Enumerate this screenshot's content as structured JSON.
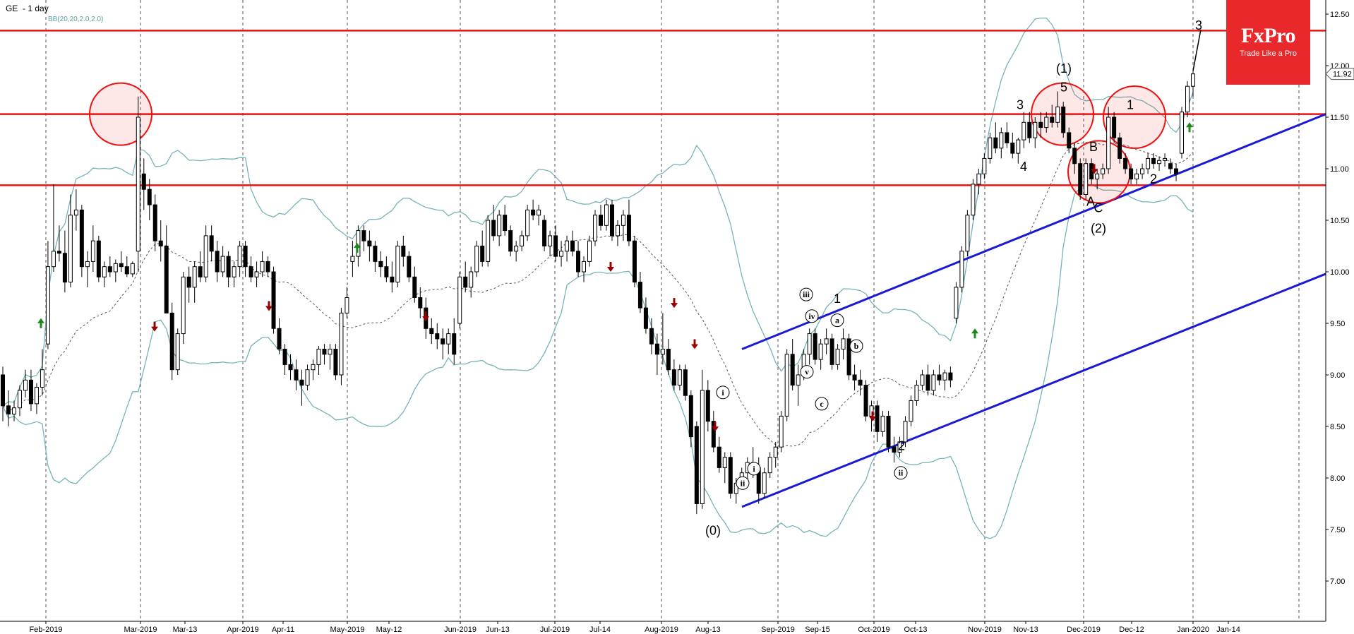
{
  "header": {
    "symbol": "GE",
    "timeframe": "- 1 day",
    "indicator": "BB(20,20,2.0,2.0)"
  },
  "logo": {
    "brand": "FxPro",
    "tagline": "Trade Like a Pro"
  },
  "colors": {
    "resistance": "#ee1111",
    "channel": "#1a1ad6",
    "bands": "#76b3b8",
    "ma": "#555555",
    "up_arrow": "#1a8a1a",
    "down_arrow": "#9a0000"
  },
  "chart_data": {
    "type": "candlestick",
    "price_axis": {
      "ticks": [
        7.0,
        7.5,
        8.0,
        8.5,
        9.0,
        9.5,
        10.0,
        10.5,
        11.0,
        11.5,
        12.0,
        12.5
      ],
      "ylim": [
        6.63,
        12.78
      ],
      "last_price_label": "11.92"
    },
    "time_axis": {
      "labels": [
        "Feb-2019",
        "Mar-2019",
        "Mar-13",
        "Apr-2019",
        "Apr-11",
        "May-2019",
        "May-12",
        "Jun-2019",
        "Jun-13",
        "Jul-2019",
        "Jul-14",
        "Aug-2019",
        "Aug-13",
        "Sep-2019",
        "Sep-15",
        "Oct-2019",
        "Oct-13",
        "Nov-2019",
        "Nov-13",
        "Dec-2019",
        "Dec-12",
        "Jan-2020",
        "Jan-14"
      ]
    },
    "horizontal_levels": [
      12.34,
      11.53,
      10.84
    ],
    "channel_upper": {
      "start": [
        "Aug-27-2019",
        9.25
      ],
      "end": [
        "Jan-2020+",
        11.53
      ]
    },
    "channel_lower": {
      "start": [
        "Aug-27-2019",
        7.72
      ],
      "end": [
        "Jan-2020+",
        9.98
      ]
    },
    "highlight_circles": [
      {
        "date": "Feb-22-2019",
        "price": 11.53
      },
      {
        "date": "Nov-22-2019",
        "price": 11.53
      },
      {
        "date": "Dec-06-2019",
        "price": 10.97
      },
      {
        "date": "Dec-13-2019",
        "price": 11.5
      }
    ],
    "wave_labels": [
      "(0)",
      "1",
      "2",
      "3",
      "4",
      "5",
      "(1)",
      "A",
      "B",
      "C",
      "(2)",
      "1",
      "2",
      "3"
    ],
    "minor_wave_labels": [
      "i",
      "ii",
      "iii",
      "iv",
      "v",
      "a",
      "b",
      "c",
      "ii",
      "i"
    ],
    "candles": [
      [
        9.0,
        9.08,
        8.55,
        8.7
      ],
      [
        8.7,
        8.85,
        8.5,
        8.62
      ],
      [
        8.62,
        8.75,
        8.55,
        8.68
      ],
      [
        8.68,
        8.9,
        8.6,
        8.85
      ],
      [
        8.85,
        9.05,
        8.78,
        8.95
      ],
      [
        8.95,
        9.05,
        8.65,
        8.72
      ],
      [
        8.72,
        8.92,
        8.62,
        8.88
      ],
      [
        8.88,
        9.25,
        8.8,
        9.05
      ],
      [
        9.3,
        10.3,
        9.25,
        10.05
      ],
      [
        10.05,
        10.85,
        10.0,
        10.2
      ],
      [
        10.2,
        10.45,
        10.1,
        10.18
      ],
      [
        10.18,
        10.4,
        9.8,
        9.9
      ],
      [
        9.9,
        10.75,
        9.85,
        10.55
      ],
      [
        10.55,
        10.8,
        10.4,
        10.6
      ],
      [
        10.6,
        10.65,
        9.95,
        10.05
      ],
      [
        10.05,
        10.2,
        9.85,
        10.1
      ],
      [
        10.1,
        10.45,
        10.0,
        10.3
      ],
      [
        10.3,
        10.35,
        9.9,
        9.95
      ],
      [
        9.95,
        10.1,
        9.85,
        10.05
      ],
      [
        10.05,
        10.15,
        9.95,
        10.0
      ],
      [
        10.0,
        10.12,
        9.9,
        10.08
      ],
      [
        10.08,
        10.2,
        10.0,
        10.05
      ],
      [
        10.05,
        10.15,
        9.95,
        9.98
      ],
      [
        9.98,
        10.1,
        9.95,
        10.08
      ],
      [
        10.2,
        11.7,
        10.0,
        11.5
      ],
      [
        10.95,
        11.1,
        10.6,
        10.8
      ],
      [
        10.8,
        10.9,
        10.5,
        10.65
      ],
      [
        10.65,
        10.75,
        10.2,
        10.3
      ],
      [
        10.3,
        10.5,
        10.1,
        10.25
      ],
      [
        10.25,
        10.45,
        9.6,
        9.6
      ],
      [
        9.6,
        9.7,
        8.95,
        9.05
      ],
      [
        9.05,
        9.45,
        9.0,
        9.4
      ],
      [
        9.4,
        10.0,
        9.3,
        9.95
      ],
      [
        9.95,
        10.05,
        9.7,
        9.85
      ],
      [
        9.85,
        10.1,
        9.7,
        10.05
      ],
      [
        10.05,
        10.2,
        9.9,
        9.95
      ],
      [
        9.95,
        10.45,
        9.9,
        10.35
      ],
      [
        10.35,
        10.45,
        10.1,
        10.2
      ],
      [
        10.2,
        10.3,
        9.9,
        10.0
      ],
      [
        10.0,
        10.25,
        9.95,
        10.15
      ],
      [
        10.15,
        10.2,
        9.85,
        9.95
      ],
      [
        9.95,
        10.1,
        9.85,
        10.05
      ],
      [
        10.05,
        10.3,
        9.95,
        10.25
      ],
      [
        10.25,
        10.3,
        9.95,
        10.05
      ],
      [
        10.05,
        10.15,
        9.9,
        9.95
      ],
      [
        9.95,
        10.1,
        9.85,
        10.0
      ],
      [
        10.0,
        10.2,
        9.95,
        10.1
      ],
      [
        10.1,
        10.15,
        9.95,
        10.0
      ],
      [
        10.0,
        10.05,
        9.4,
        9.45
      ],
      [
        9.45,
        9.55,
        9.2,
        9.25
      ],
      [
        9.25,
        9.3,
        9.0,
        9.1
      ],
      [
        9.1,
        9.2,
        8.95,
        9.05
      ],
      [
        9.05,
        9.15,
        8.85,
        8.95
      ],
      [
        8.95,
        9.05,
        8.7,
        8.9
      ],
      [
        8.9,
        9.1,
        8.85,
        9.05
      ],
      [
        9.05,
        9.15,
        8.95,
        9.1
      ],
      [
        9.1,
        9.28,
        9.0,
        9.25
      ],
      [
        9.25,
        9.3,
        9.1,
        9.2
      ],
      [
        9.2,
        9.3,
        9.05,
        9.25
      ],
      [
        9.25,
        9.3,
        8.95,
        9.0
      ],
      [
        9.0,
        9.65,
        8.9,
        9.6
      ],
      [
        9.6,
        9.85,
        9.55,
        9.75
      ],
      [
        10.1,
        10.3,
        9.95,
        10.15
      ],
      [
        10.15,
        10.45,
        10.05,
        10.4
      ],
      [
        10.4,
        10.45,
        10.2,
        10.3
      ],
      [
        10.3,
        10.4,
        10.1,
        10.25
      ],
      [
        10.25,
        10.3,
        10.0,
        10.1
      ],
      [
        10.1,
        10.2,
        9.95,
        10.05
      ],
      [
        10.05,
        10.15,
        9.9,
        9.95
      ],
      [
        9.95,
        10.1,
        9.8,
        9.9
      ],
      [
        9.9,
        10.3,
        9.85,
        10.25
      ],
      [
        10.25,
        10.35,
        10.05,
        10.15
      ],
      [
        10.15,
        10.2,
        9.9,
        9.95
      ],
      [
        9.95,
        10.05,
        9.7,
        9.75
      ],
      [
        9.75,
        9.85,
        9.55,
        9.65
      ],
      [
        9.65,
        9.75,
        9.35,
        9.45
      ],
      [
        9.45,
        9.55,
        9.3,
        9.4
      ],
      [
        9.4,
        9.5,
        9.25,
        9.35
      ],
      [
        9.35,
        9.45,
        9.15,
        9.3
      ],
      [
        9.3,
        9.45,
        9.2,
        9.4
      ],
      [
        9.4,
        9.55,
        9.1,
        9.2
      ],
      [
        9.5,
        10.0,
        9.45,
        9.95
      ],
      [
        9.95,
        10.1,
        9.8,
        9.85
      ],
      [
        9.85,
        10.05,
        9.75,
        10.0
      ],
      [
        10.0,
        10.3,
        9.95,
        10.25
      ],
      [
        10.25,
        10.4,
        10.05,
        10.1
      ],
      [
        10.1,
        10.55,
        10.05,
        10.5
      ],
      [
        10.5,
        10.65,
        10.3,
        10.35
      ],
      [
        10.35,
        10.6,
        10.25,
        10.55
      ],
      [
        10.55,
        10.65,
        10.35,
        10.4
      ],
      [
        10.4,
        10.45,
        10.15,
        10.2
      ],
      [
        10.2,
        10.3,
        10.1,
        10.25
      ],
      [
        10.25,
        10.4,
        10.2,
        10.35
      ],
      [
        10.35,
        10.65,
        10.3,
        10.6
      ],
      [
        10.6,
        10.7,
        10.5,
        10.55
      ],
      [
        10.55,
        10.65,
        10.45,
        10.6
      ],
      [
        10.5,
        10.55,
        10.2,
        10.25
      ],
      [
        10.25,
        10.4,
        10.15,
        10.35
      ],
      [
        10.35,
        10.45,
        10.1,
        10.15
      ],
      [
        10.15,
        10.3,
        10.05,
        10.2
      ],
      [
        10.2,
        10.35,
        10.1,
        10.3
      ],
      [
        10.3,
        10.4,
        10.15,
        10.2
      ],
      [
        10.2,
        10.3,
        9.95,
        10.0
      ],
      [
        10.0,
        10.15,
        9.9,
        10.1
      ],
      [
        10.1,
        10.35,
        10.05,
        10.3
      ],
      [
        10.3,
        10.6,
        10.25,
        10.55
      ],
      [
        10.55,
        10.65,
        10.4,
        10.45
      ],
      [
        10.45,
        10.7,
        10.4,
        10.65
      ],
      [
        10.65,
        10.7,
        10.3,
        10.35
      ],
      [
        10.35,
        10.5,
        10.25,
        10.45
      ],
      [
        10.45,
        10.6,
        10.3,
        10.55
      ],
      [
        10.55,
        10.7,
        10.25,
        10.3
      ],
      [
        10.3,
        10.35,
        9.85,
        9.9
      ],
      [
        9.9,
        10.0,
        9.6,
        9.65
      ],
      [
        9.65,
        9.75,
        9.4,
        9.45
      ],
      [
        9.45,
        9.55,
        9.2,
        9.3
      ],
      [
        9.3,
        9.4,
        9.0,
        9.2
      ],
      [
        9.2,
        9.6,
        9.1,
        9.25
      ],
      [
        9.25,
        9.35,
        9.0,
        9.05
      ],
      [
        9.05,
        9.15,
        8.85,
        8.9
      ],
      [
        8.9,
        9.1,
        8.85,
        9.05
      ],
      [
        9.05,
        9.1,
        8.75,
        8.8
      ],
      [
        8.8,
        8.85,
        8.3,
        8.4
      ],
      [
        8.5,
        8.55,
        7.65,
        7.75
      ],
      [
        7.75,
        9.05,
        7.7,
        8.85
      ],
      [
        8.85,
        8.95,
        8.45,
        8.55
      ],
      [
        8.55,
        8.65,
        8.25,
        8.3
      ],
      [
        8.3,
        8.4,
        8.05,
        8.1
      ],
      [
        8.1,
        8.25,
        7.95,
        8.2
      ],
      [
        8.2,
        8.25,
        7.8,
        7.85
      ],
      [
        7.85,
        8.0,
        7.75,
        7.95
      ],
      [
        7.95,
        8.1,
        7.9,
        8.05
      ],
      [
        8.05,
        8.2,
        7.95,
        8.15
      ],
      [
        8.15,
        8.3,
        8.0,
        8.1
      ],
      [
        8.1,
        8.2,
        7.75,
        7.85
      ],
      [
        7.85,
        8.1,
        7.8,
        8.05
      ],
      [
        8.05,
        8.25,
        8.0,
        8.2
      ],
      [
        8.2,
        8.35,
        8.1,
        8.3
      ],
      [
        8.3,
        8.65,
        8.25,
        8.6
      ],
      [
        8.6,
        9.25,
        8.55,
        9.2
      ],
      [
        9.2,
        9.35,
        8.85,
        8.9
      ],
      [
        8.9,
        9.1,
        8.7,
        9.0
      ],
      [
        9.0,
        9.25,
        8.95,
        9.2
      ],
      [
        9.2,
        9.45,
        9.1,
        9.4
      ],
      [
        9.4,
        9.45,
        9.1,
        9.15
      ],
      [
        9.15,
        9.35,
        9.05,
        9.3
      ],
      [
        9.3,
        9.45,
        9.2,
        9.35
      ],
      [
        9.35,
        9.4,
        9.05,
        9.1
      ],
      [
        9.1,
        9.3,
        9.05,
        9.25
      ],
      [
        9.25,
        9.45,
        9.15,
        9.35
      ],
      [
        9.35,
        9.4,
        8.95,
        9.0
      ],
      [
        9.0,
        9.1,
        8.85,
        8.95
      ],
      [
        8.95,
        9.05,
        8.8,
        8.9
      ],
      [
        8.9,
        8.95,
        8.55,
        8.6
      ],
      [
        8.6,
        8.75,
        8.45,
        8.7
      ],
      [
        8.7,
        8.75,
        8.35,
        8.45
      ],
      [
        8.45,
        8.65,
        8.4,
        8.6
      ],
      [
        8.6,
        8.65,
        8.25,
        8.3
      ],
      [
        8.3,
        8.4,
        8.15,
        8.25
      ],
      [
        8.25,
        8.4,
        8.2,
        8.35
      ],
      [
        8.35,
        8.6,
        8.3,
        8.55
      ],
      [
        8.55,
        8.8,
        8.5,
        8.75
      ],
      [
        8.75,
        8.95,
        8.7,
        8.9
      ],
      [
        8.9,
        9.05,
        8.85,
        9.0
      ],
      [
        9.0,
        9.1,
        8.8,
        8.85
      ],
      [
        8.85,
        9.05,
        8.8,
        9.0
      ],
      [
        9.0,
        9.1,
        8.9,
        8.95
      ],
      [
        8.95,
        9.05,
        8.85,
        9.02
      ],
      [
        9.02,
        9.08,
        8.88,
        8.95
      ],
      [
        9.55,
        9.9,
        9.5,
        9.85
      ],
      [
        9.85,
        10.25,
        9.8,
        10.2
      ],
      [
        10.2,
        10.6,
        10.15,
        10.55
      ],
      [
        10.55,
        10.9,
        10.5,
        10.85
      ],
      [
        10.85,
        11.0,
        10.75,
        10.95
      ],
      [
        10.95,
        11.15,
        10.9,
        11.1
      ],
      [
        11.1,
        11.35,
        11.05,
        11.3
      ],
      [
        11.3,
        11.45,
        11.15,
        11.2
      ],
      [
        11.2,
        11.4,
        11.1,
        11.35
      ],
      [
        11.35,
        11.45,
        11.2,
        11.25
      ],
      [
        11.25,
        11.35,
        11.1,
        11.15
      ],
      [
        11.15,
        11.3,
        11.05,
        11.28
      ],
      [
        11.28,
        11.55,
        11.2,
        11.45
      ],
      [
        11.45,
        11.55,
        11.25,
        11.3
      ],
      [
        11.3,
        11.5,
        11.2,
        11.45
      ],
      [
        11.45,
        11.55,
        11.3,
        11.4
      ],
      [
        11.4,
        11.55,
        11.35,
        11.5
      ],
      [
        11.5,
        11.62,
        11.4,
        11.45
      ],
      [
        11.45,
        11.75,
        11.4,
        11.6
      ],
      [
        11.6,
        11.65,
        11.3,
        11.35
      ],
      [
        11.35,
        11.4,
        11.15,
        11.2
      ],
      [
        11.2,
        11.25,
        10.95,
        11.05
      ],
      [
        11.05,
        11.1,
        10.7,
        10.75
      ],
      [
        10.75,
        11.1,
        10.7,
        11.05
      ],
      [
        11.05,
        11.1,
        10.85,
        10.9
      ],
      [
        10.9,
        11.0,
        10.8,
        10.95
      ],
      [
        10.95,
        11.05,
        10.9,
        11.0
      ],
      [
        11.0,
        11.6,
        10.95,
        11.5
      ],
      [
        11.5,
        11.55,
        11.25,
        11.3
      ],
      [
        11.3,
        11.35,
        11.05,
        11.1
      ],
      [
        11.1,
        11.15,
        10.95,
        11.0
      ],
      [
        11.0,
        11.05,
        10.85,
        10.9
      ],
      [
        10.9,
        11.0,
        10.85,
        10.95
      ],
      [
        10.95,
        11.05,
        10.9,
        11.0
      ],
      [
        11.0,
        11.15,
        10.95,
        11.1
      ],
      [
        11.1,
        11.15,
        11.0,
        11.05
      ],
      [
        11.05,
        11.12,
        10.98,
        11.08
      ],
      [
        11.08,
        11.15,
        11.02,
        11.1
      ],
      [
        11.05,
        11.1,
        10.95,
        11.0
      ],
      [
        11.0,
        11.05,
        10.88,
        10.95
      ],
      [
        11.15,
        11.6,
        11.1,
        11.55
      ],
      [
        11.55,
        11.85,
        11.5,
        11.8
      ],
      [
        11.8,
        11.95,
        11.7,
        11.92
      ]
    ]
  }
}
